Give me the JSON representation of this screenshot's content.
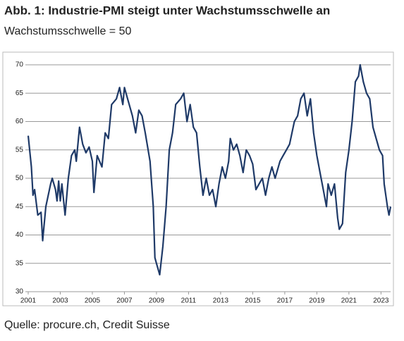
{
  "chart_data": {
    "type": "line",
    "title": "Abb. 1: Industrie-PMI steigt unter Wachstumsschwelle an",
    "subtitle": "Wachstumsschwelle = 50",
    "source": "Quelle: procure.ch, Credit Suisse",
    "x": [
      2001.0,
      2001.2,
      2001.3,
      2001.4,
      2001.6,
      2001.8,
      2001.9,
      2002.1,
      2002.4,
      2002.5,
      2002.7,
      2002.8,
      2002.9,
      2003.0,
      2003.1,
      2003.3,
      2003.5,
      2003.7,
      2003.9,
      2004.0,
      2004.2,
      2004.4,
      2004.6,
      2004.8,
      2005.0,
      2005.1,
      2005.3,
      2005.6,
      2005.8,
      2006.0,
      2006.2,
      2006.5,
      2006.7,
      2006.9,
      2007.0,
      2007.2,
      2007.5,
      2007.7,
      2007.9,
      2008.1,
      2008.3,
      2008.6,
      2008.8,
      2008.9,
      2009.0,
      2009.2,
      2009.4,
      2009.6,
      2009.8,
      2010.0,
      2010.2,
      2010.5,
      2010.7,
      2010.9,
      2011.1,
      2011.3,
      2011.5,
      2011.7,
      2011.9,
      2012.1,
      2012.3,
      2012.5,
      2012.7,
      2012.9,
      2013.1,
      2013.3,
      2013.5,
      2013.6,
      2013.8,
      2014.0,
      2014.2,
      2014.4,
      2014.6,
      2014.8,
      2015.0,
      2015.2,
      2015.4,
      2015.6,
      2015.8,
      2016.0,
      2016.2,
      2016.4,
      2016.7,
      2016.9,
      2017.1,
      2017.3,
      2017.6,
      2017.8,
      2018.0,
      2018.2,
      2018.4,
      2018.6,
      2018.8,
      2019.0,
      2019.2,
      2019.4,
      2019.6,
      2019.7,
      2019.9,
      2020.1,
      2020.3,
      2020.4,
      2020.6,
      2020.8,
      2021.0,
      2021.2,
      2021.4,
      2021.6,
      2021.7,
      2021.9,
      2022.1,
      2022.3,
      2022.5,
      2022.7,
      2022.9,
      2023.1,
      2023.2,
      2023.4,
      2023.5,
      2023.6
    ],
    "values": [
      57.5,
      52,
      47,
      48,
      43.5,
      44,
      39,
      45,
      49,
      50,
      48,
      46,
      49.5,
      46,
      49,
      43.5,
      50,
      54,
      55,
      53,
      59,
      56,
      54.5,
      55.5,
      53,
      47.5,
      54,
      52,
      58,
      57,
      63,
      64,
      66,
      63,
      66,
      64,
      61,
      58,
      62,
      61,
      58,
      53,
      45,
      36,
      35,
      33,
      38,
      45,
      55,
      58,
      63,
      64,
      65,
      60,
      63,
      59,
      58,
      52,
      47,
      50,
      47,
      48,
      45,
      49,
      52,
      50,
      53,
      57,
      55,
      56,
      54,
      51,
      55,
      54,
      52.5,
      48,
      49,
      50,
      47,
      50,
      52,
      50,
      53,
      54,
      55,
      56,
      60,
      61,
      64,
      65,
      61,
      64,
      58,
      54,
      51,
      48,
      45,
      49,
      47,
      49,
      43,
      41,
      42,
      51,
      55,
      60,
      67,
      68,
      70,
      67,
      65,
      64,
      59,
      57,
      55,
      54,
      49,
      45,
      43.5,
      45
    ],
    "color": "#1f3a68",
    "xlim": [
      2001,
      2023.6
    ],
    "xticks": [
      2001,
      2003,
      2005,
      2007,
      2009,
      2011,
      2013,
      2015,
      2017,
      2019,
      2021,
      2023
    ],
    "ylim": [
      30,
      70
    ],
    "yticks": [
      30,
      35,
      40,
      45,
      50,
      55,
      60,
      65,
      70
    ],
    "grid": true
  }
}
